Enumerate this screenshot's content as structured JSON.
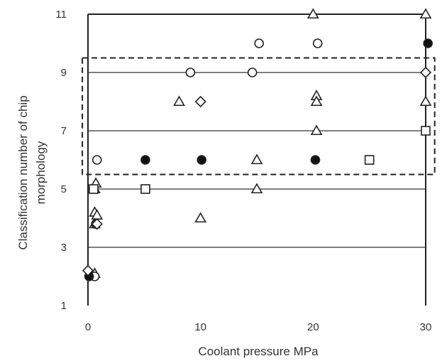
{
  "chart_data": {
    "type": "scatter",
    "title": "",
    "xlabel": "Coolant pressure   MPa",
    "ylabel_lines": [
      "Classification number of chip",
      "morphology"
    ],
    "xlim": [
      0,
      30
    ],
    "ylim": [
      1,
      11
    ],
    "x_ticks": [
      0,
      10,
      20,
      30
    ],
    "y_ticks": [
      1,
      3,
      5,
      7,
      9,
      11
    ],
    "gridlines_y": [
      3,
      5,
      7,
      9
    ],
    "grid": "horizontal",
    "legend": "none",
    "highlight_region": {
      "x_range": [
        -0.5,
        30.8
      ],
      "y_range": [
        5.5,
        9.5
      ],
      "style": "dashed"
    },
    "series": [
      {
        "marker": "triangle",
        "points": [
          {
            "x": 0.6,
            "y": 5.0
          },
          {
            "x": 0.7,
            "y": 5.2
          },
          {
            "x": 0.6,
            "y": 4.2
          },
          {
            "x": 0.8,
            "y": 4.1
          },
          {
            "x": 0.6,
            "y": 3.8
          },
          {
            "x": 0.6,
            "y": 2.1
          },
          {
            "x": 8.1,
            "y": 8.0
          },
          {
            "x": 10.0,
            "y": 4.0
          },
          {
            "x": 15.0,
            "y": 6.0
          },
          {
            "x": 15.0,
            "y": 5.0
          },
          {
            "x": 20.0,
            "y": 11.0
          },
          {
            "x": 20.3,
            "y": 8.2
          },
          {
            "x": 20.3,
            "y": 8.0
          },
          {
            "x": 20.3,
            "y": 7.0
          },
          {
            "x": 30.0,
            "y": 11.0
          },
          {
            "x": 30.0,
            "y": 8.0
          }
        ]
      },
      {
        "marker": "circle-open",
        "points": [
          {
            "x": 0.8,
            "y": 6.0
          },
          {
            "x": 0.6,
            "y": 2.0
          },
          {
            "x": 9.1,
            "y": 9.0
          },
          {
            "x": 14.6,
            "y": 9.0
          },
          {
            "x": 15.2,
            "y": 10.0
          },
          {
            "x": 20.4,
            "y": 10.0
          }
        ]
      },
      {
        "marker": "circle-filled",
        "points": [
          {
            "x": 0.1,
            "y": 2.0
          },
          {
            "x": 0.7,
            "y": 3.8
          },
          {
            "x": 5.1,
            "y": 6.0
          },
          {
            "x": 10.1,
            "y": 6.0
          },
          {
            "x": 20.2,
            "y": 6.0
          },
          {
            "x": 30.2,
            "y": 10.0
          }
        ]
      },
      {
        "marker": "square",
        "points": [
          {
            "x": 0.5,
            "y": 5.0
          },
          {
            "x": 5.1,
            "y": 5.0
          },
          {
            "x": 25.0,
            "y": 6.0
          },
          {
            "x": 30.0,
            "y": 7.0
          }
        ]
      },
      {
        "marker": "diamond",
        "points": [
          {
            "x": 0.0,
            "y": 2.2
          },
          {
            "x": 0.8,
            "y": 3.8
          },
          {
            "x": 10.0,
            "y": 8.0
          },
          {
            "x": 30.0,
            "y": 9.0
          }
        ]
      }
    ]
  }
}
